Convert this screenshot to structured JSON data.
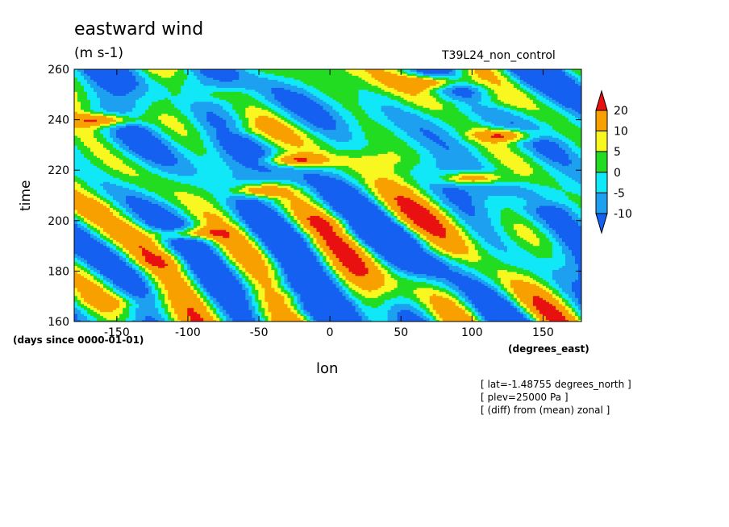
{
  "chart_data": {
    "type": "heatmap",
    "title": "eastward wind",
    "units_label": "(m s-1)",
    "case_label": "T39L24_non_control",
    "xlabel": "lon",
    "ylabel": "time",
    "x_units": "(degrees_east)",
    "y_units": "(days since 0000-01-01)",
    "xlim": [
      -180,
      177
    ],
    "ylim": [
      160,
      260
    ],
    "x_ticks": [
      -150,
      -100,
      -50,
      0,
      50,
      100,
      150
    ],
    "y_ticks": [
      160,
      180,
      200,
      220,
      240,
      260
    ],
    "x_tick_labels": [
      "-150",
      "-100",
      "-50",
      "0",
      "50",
      "100",
      "150"
    ],
    "y_tick_labels": [
      "160",
      "180",
      "200",
      "220",
      "240",
      "260"
    ],
    "colorbar": {
      "levels": [
        -10,
        -5,
        0,
        5,
        10,
        20
      ],
      "labels": [
        "-10",
        "-5",
        "0",
        "5",
        "10",
        "20"
      ],
      "colors": [
        "#1560f0",
        "#1ea0f0",
        "#10e8f8",
        "#22dc22",
        "#f8f820",
        "#f8a000",
        "#e81010"
      ]
    },
    "features": [
      {
        "lon": -158,
        "time": 240,
        "value": 22
      },
      {
        "lon": -100,
        "time": 195,
        "value": 22
      },
      {
        "lon": -50,
        "time": 212,
        "value": 18
      },
      {
        "lon": -25,
        "time": 224,
        "value": 21
      },
      {
        "lon": 75,
        "time": 255,
        "value": 21
      },
      {
        "lon": 100,
        "time": 217,
        "value": 21
      },
      {
        "lon": 125,
        "time": 234,
        "value": 21
      }
    ]
  },
  "notes": [
    "[ lat=-1.48755 degrees_north ]",
    "[ plev=25000 Pa ]",
    "[ (diff) from (mean) zonal ]"
  ]
}
